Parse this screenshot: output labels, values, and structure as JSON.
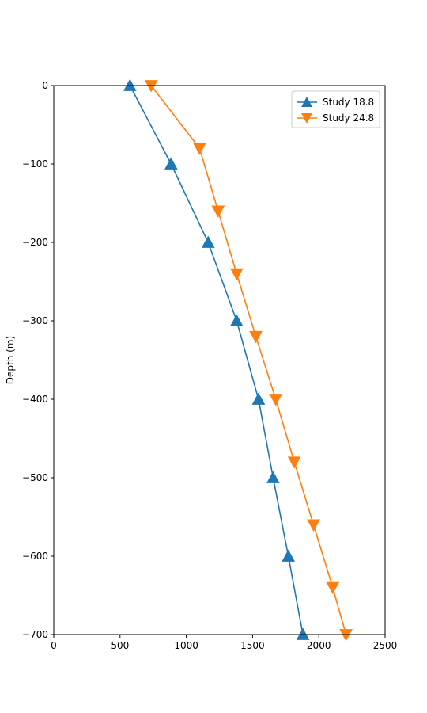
{
  "chart_data": {
    "type": "line",
    "title": "",
    "xlabel": "",
    "ylabel": "Depth (m)",
    "xlim": [
      0,
      2500
    ],
    "ylim": [
      -700,
      0
    ],
    "xticks": [
      0,
      500,
      1000,
      1500,
      2000,
      2500
    ],
    "yticks": [
      0,
      -100,
      -200,
      -300,
      -400,
      -500,
      -600,
      -700
    ],
    "grid": false,
    "legend_position": "top-right",
    "series": [
      {
        "name": "Study 18.8",
        "color": "#1f77b4",
        "marker": "triangle-up",
        "x": [
          575,
          885,
          1165,
          1380,
          1545,
          1655,
          1770,
          1880
        ],
        "y": [
          0,
          -100,
          -200,
          -300,
          -400,
          -500,
          -600,
          -700
        ]
      },
      {
        "name": "Study 24.8",
        "color": "#ff7f0e",
        "marker": "triangle-down",
        "x": [
          735,
          1100,
          1240,
          1380,
          1525,
          1675,
          1815,
          1960,
          2105,
          2205
        ],
        "y": [
          0,
          -80,
          -160,
          -240,
          -320,
          -400,
          -480,
          -560,
          -640,
          -700
        ]
      }
    ]
  }
}
